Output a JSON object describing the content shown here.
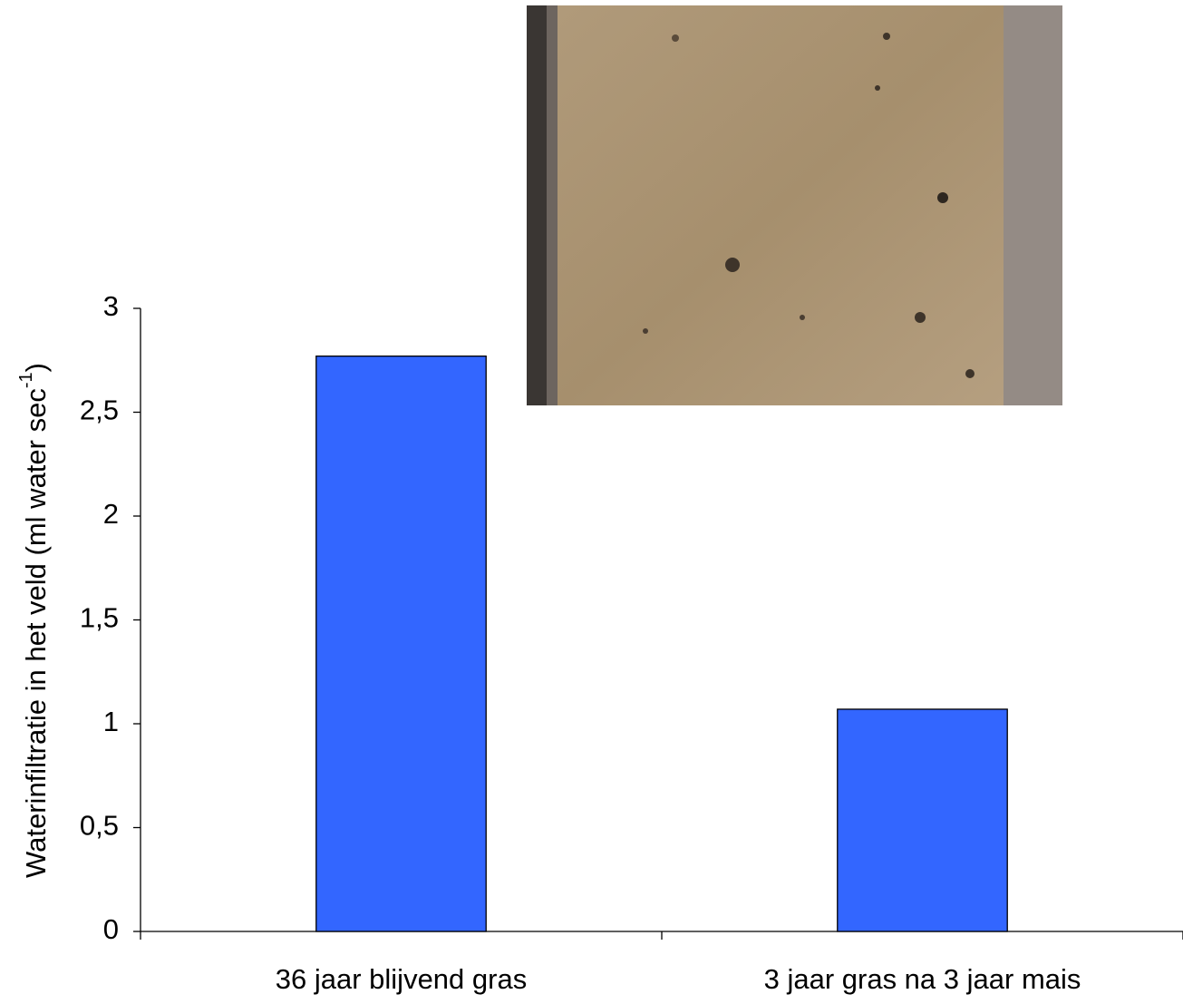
{
  "chart_data": {
    "type": "bar",
    "y_label": {
      "text": "Waterinfiltratie in het veld (ml water sec",
      "superscript": "-1",
      "end": ")"
    },
    "categories": [
      "36 jaar blijvend gras",
      "3 jaar gras na 3 jaar mais"
    ],
    "values": [
      2.77,
      1.07
    ],
    "color": "#3366ff",
    "ylim": [
      0,
      3
    ],
    "yticks": [
      0,
      {
        "value": 0.5,
        "label": "0,5"
      },
      1,
      {
        "value": 1.5,
        "label": "1,5"
      },
      2,
      {
        "value": 2.5,
        "label": "2,5"
      },
      3
    ],
    "grid": false
  }
}
